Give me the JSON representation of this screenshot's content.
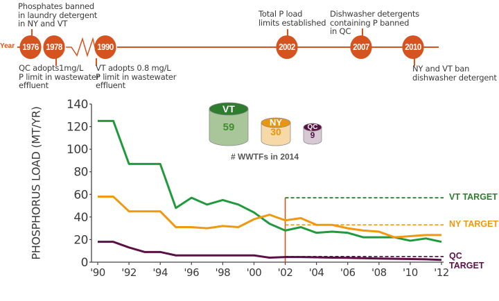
{
  "timeline": {
    "year_label": "Year",
    "events": [
      {
        "year": "1976",
        "note": "Phosphates banned\nin laundry detergent\nin NY and VT",
        "position": "above"
      },
      {
        "year": "1978",
        "note": "QC adopts1mg/L\nP limit in wastewater\neffluent",
        "position": "below"
      },
      {
        "year": "1990",
        "note": "VT adopts 0.8 mg/L\nP limit in wastewater\neffluent",
        "position": "below"
      },
      {
        "year": "2002",
        "note": "Total P load\nlimits established",
        "position": "above"
      },
      {
        "year": "2007",
        "note": "Dishwasher detergents\ncontaining P banned\nin QC",
        "position": "above"
      },
      {
        "year": "2010",
        "note": "NY and VT ban\ndishwasher detergent P",
        "position": "below"
      }
    ],
    "color": "#d4531e"
  },
  "wwtf": {
    "caption": "# WWTFs in 2014",
    "items": [
      {
        "name": "VT",
        "count": "59",
        "top_color": "#2e7d2e",
        "body_color": "#a9c59a",
        "text_color": "#3f8f2f"
      },
      {
        "name": "NY",
        "count": "30",
        "top_color": "#e8950f",
        "body_color": "#f6d9a6",
        "text_color": "#e8950f"
      },
      {
        "name": "QC",
        "count": "9",
        "top_color": "#5b1046",
        "body_color": "#d6c9d3",
        "text_color": "#5b1046"
      }
    ]
  },
  "chart_data": {
    "type": "line",
    "title": "",
    "xlabel": "",
    "ylabel": "PHOSPHORUS LOAD (MT/YR)",
    "ylim": [
      0,
      140
    ],
    "yticks": [
      "0",
      "20",
      "40",
      "60",
      "80",
      "100",
      "120",
      "140"
    ],
    "x": [
      1990,
      1991,
      1992,
      1993,
      1994,
      1995,
      1996,
      1997,
      1998,
      1999,
      2000,
      2001,
      2002,
      2003,
      2004,
      2005,
      2006,
      2007,
      2008,
      2009,
      2010,
      2011,
      2012
    ],
    "xticks": [
      "'90",
      "'92",
      "'94",
      "'96",
      "'98",
      "'00",
      "'02",
      "'04",
      "'06",
      "'08",
      "'10",
      "'12"
    ],
    "series": [
      {
        "name": "VT",
        "color": "#1f9a3c",
        "values": [
          125,
          125,
          87,
          87,
          87,
          48,
          57,
          51,
          55,
          51,
          44,
          34,
          28,
          31,
          26,
          27,
          26,
          22,
          22,
          22,
          19,
          21,
          18
        ]
      },
      {
        "name": "NY",
        "color": "#f0980f",
        "values": [
          58,
          58,
          45,
          45,
          45,
          31,
          31,
          30,
          32,
          31,
          38,
          42,
          37,
          39,
          33,
          33,
          30,
          28,
          27,
          22,
          23,
          24,
          24
        ]
      },
      {
        "name": "QC",
        "color": "#5b1046",
        "values": [
          18,
          18,
          13,
          9,
          9,
          6,
          6,
          6,
          6,
          6,
          6,
          4,
          4.5,
          4.5,
          4.3,
          4,
          3.8,
          3.5,
          3.2,
          3,
          2.8,
          2.5,
          2
        ]
      }
    ],
    "targets": [
      {
        "name": "VT TARGET",
        "value": 57,
        "color": "#2e7d2e",
        "start_year": 2002
      },
      {
        "name": "NY TARGET",
        "value": 33,
        "color": "#f0980f",
        "start_year": 2002
      },
      {
        "name": "QC TARGET",
        "value": 5,
        "color": "#5b1046",
        "start_year": 2002
      }
    ],
    "marker_year": 2002,
    "marker_color": "#d4531e",
    "grid": false,
    "legend": "right (target labels)"
  }
}
